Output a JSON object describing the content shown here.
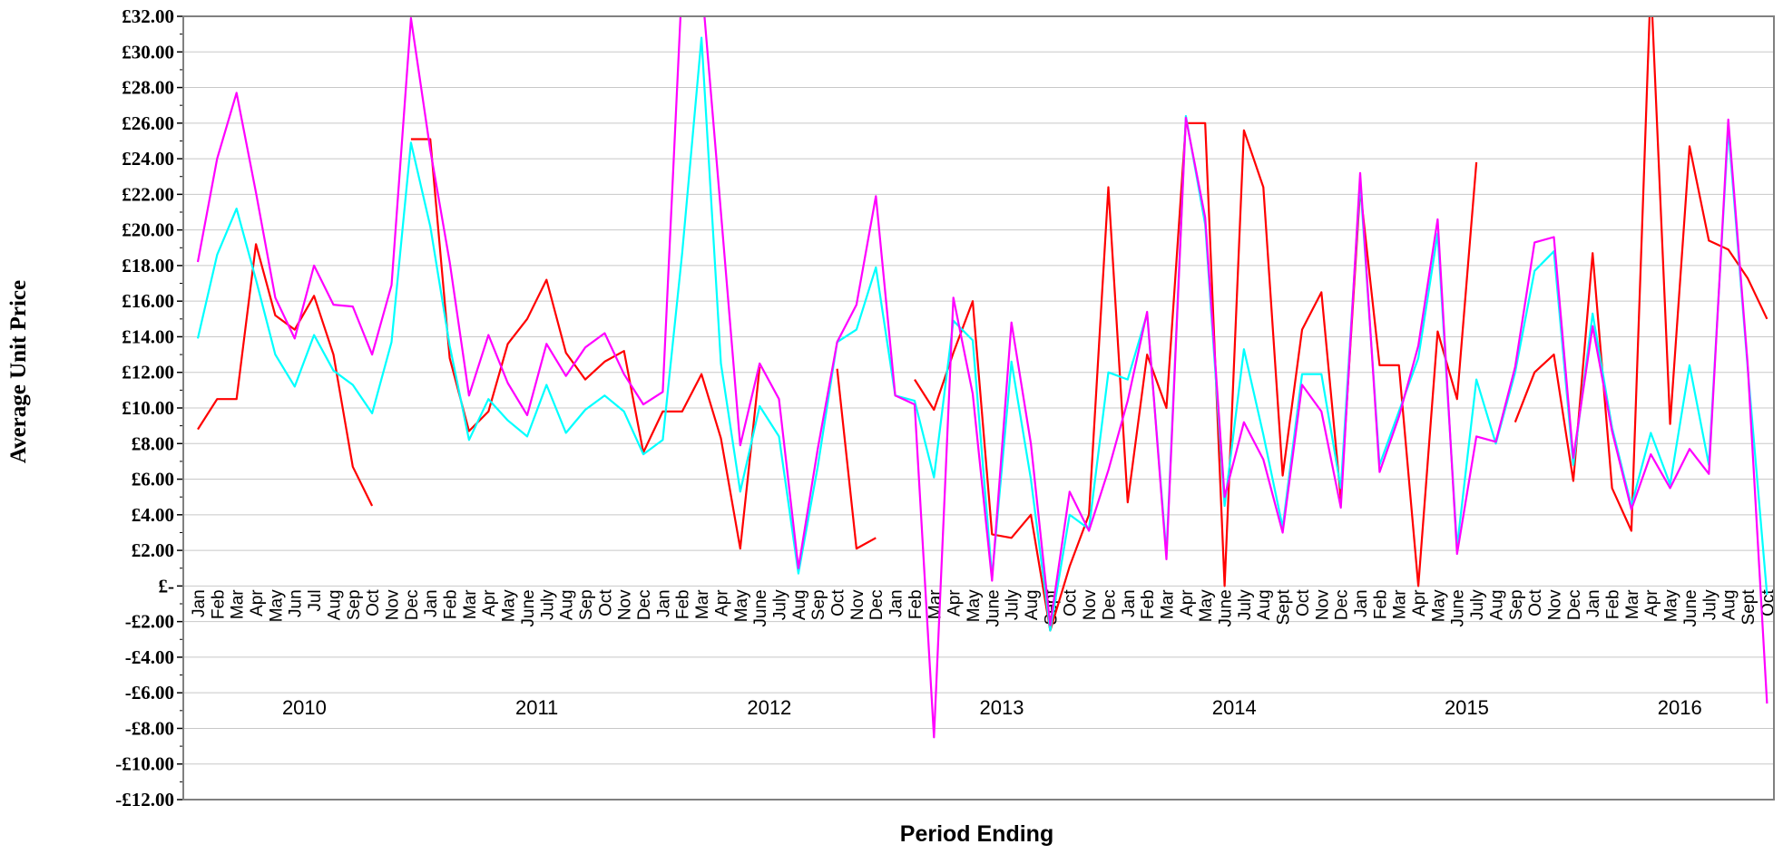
{
  "chart_data": {
    "type": "line",
    "xlabel": "Period Ending",
    "ylabel": "Average Unit Price",
    "ylim": [
      -12,
      32
    ],
    "ytick_step": 2,
    "ytick_labels": [
      "-£12.00",
      "-£10.00",
      "-£8.00",
      "-£6.00",
      "-£4.00",
      "-£2.00",
      "£-",
      "£2.00",
      "£4.00",
      "£6.00",
      "£8.00",
      "£10.00",
      "£12.00",
      "£14.00",
      "£16.00",
      "£18.00",
      "£20.00",
      "£22.00",
      "£24.00",
      "£26.00",
      "£28.00",
      "£30.00",
      "£32.00"
    ],
    "grid": true,
    "legend": "none",
    "categories": [
      "Jan",
      "Feb",
      "Mar",
      "Apr",
      "May",
      "Jun",
      "Jul",
      "Aug",
      "Sep",
      "Oct",
      "Nov",
      "Dec",
      "Jan",
      "Feb",
      "Mar",
      "Apr",
      "May",
      "June",
      "July",
      "Aug",
      "Sep",
      "Oct",
      "Nov",
      "Dec",
      "Jan",
      "Feb",
      "Mar",
      "Apr",
      "May",
      "June",
      "July",
      "Aug",
      "Sep",
      "Oct",
      "Nov",
      "Dec",
      "Jan",
      "Feb",
      "Mar",
      "Apr",
      "May",
      "June",
      "July",
      "Aug",
      "Sept",
      "Oct",
      "Nov",
      "Dec",
      "Jan",
      "Feb",
      "Mar",
      "Apr",
      "May",
      "June",
      "July",
      "Aug",
      "Sept",
      "Oct",
      "Nov",
      "Dec",
      "Jan",
      "Feb",
      "Mar",
      "Apr",
      "May",
      "June",
      "July",
      "Aug",
      "Sep",
      "Oct",
      "Nov",
      "Dec",
      "Jan",
      "Feb",
      "Mar",
      "Apr",
      "May",
      "June",
      "July",
      "Aug",
      "Sept",
      "Oct"
    ],
    "year_groups": [
      {
        "label": "2010",
        "start": 0,
        "count": 12
      },
      {
        "label": "2011",
        "start": 12,
        "count": 12
      },
      {
        "label": "2012",
        "start": 24,
        "count": 12
      },
      {
        "label": "2013",
        "start": 36,
        "count": 12
      },
      {
        "label": "2014",
        "start": 48,
        "count": 12
      },
      {
        "label": "2015",
        "start": 60,
        "count": 12
      },
      {
        "label": "2016",
        "start": 72,
        "count": 10
      }
    ],
    "series": [
      {
        "color": "#ff0000",
        "values": [
          8.8,
          10.5,
          10.5,
          19.2,
          15.2,
          14.4,
          16.3,
          13.0,
          6.7,
          4.5,
          null,
          25.1,
          25.1,
          12.8,
          8.7,
          9.8,
          13.6,
          15.0,
          17.2,
          13.1,
          11.6,
          12.6,
          13.2,
          7.5,
          9.8,
          9.8,
          11.9,
          8.3,
          2.1,
          12.3,
          null,
          null,
          null,
          12.2,
          2.1,
          2.7,
          null,
          11.6,
          9.9,
          13.1,
          16.0,
          2.9,
          2.7,
          4.0,
          -2.5,
          1.1,
          4.0,
          22.4,
          4.7,
          13.0,
          10.0,
          26.0,
          26.0,
          0.0,
          25.6,
          22.4,
          6.2,
          14.4,
          16.5,
          4.9,
          22.3,
          12.4,
          12.4,
          0.0,
          14.3,
          10.5,
          23.8,
          null,
          9.2,
          12.0,
          13.0,
          5.9,
          18.7,
          5.5,
          3.1,
          34.0,
          9.1,
          24.7,
          19.4,
          18.9,
          17.3,
          15.0
        ]
      },
      {
        "color": "#00ffff",
        "values": [
          13.9,
          18.6,
          21.2,
          17.2,
          13.0,
          11.2,
          14.1,
          12.1,
          11.3,
          9.7,
          13.7,
          24.9,
          20.2,
          13.5,
          8.2,
          10.5,
          9.3,
          8.4,
          11.3,
          8.6,
          9.9,
          10.7,
          9.8,
          7.4,
          8.2,
          18.7,
          30.8,
          12.5,
          5.3,
          10.1,
          8.4,
          0.7,
          6.7,
          13.7,
          14.4,
          17.9,
          10.7,
          10.4,
          6.1,
          14.9,
          13.8,
          0.5,
          12.6,
          6.0,
          -2.5,
          4.0,
          3.2,
          12.0,
          11.6,
          15.3,
          1.8,
          26.4,
          20.3,
          4.5,
          13.3,
          8.5,
          3.3,
          11.9,
          11.9,
          5.5,
          22.7,
          6.8,
          9.8,
          12.8,
          19.8,
          2.2,
          11.6,
          8.0,
          12.0,
          17.7,
          18.8,
          6.8,
          15.3,
          8.9,
          4.5,
          8.6,
          5.7,
          12.4,
          6.8,
          25.7,
          12.3,
          -0.5
        ]
      },
      {
        "color": "#ff00ff",
        "values": [
          18.2,
          24.0,
          27.7,
          22.1,
          16.2,
          13.9,
          18.0,
          15.8,
          15.7,
          13.0,
          16.9,
          31.9,
          24.5,
          18.2,
          10.7,
          14.1,
          11.4,
          9.6,
          13.6,
          11.8,
          13.4,
          14.2,
          11.9,
          10.2,
          10.9,
          34.0,
          34.0,
          21.0,
          7.9,
          12.5,
          10.5,
          1.0,
          7.7,
          13.7,
          15.8,
          21.9,
          10.7,
          10.2,
          -8.5,
          16.2,
          10.8,
          0.3,
          14.8,
          8.0,
          -2.2,
          5.3,
          3.1,
          6.5,
          10.4,
          15.4,
          1.5,
          26.3,
          20.7,
          5.0,
          9.2,
          7.1,
          3.0,
          11.3,
          9.8,
          4.4,
          23.2,
          6.4,
          9.5,
          13.5,
          20.6,
          1.8,
          8.4,
          8.1,
          12.3,
          19.3,
          19.6,
          7.2,
          14.6,
          8.7,
          4.3,
          7.4,
          5.5,
          7.7,
          6.3,
          26.2,
          12.5,
          -6.6
        ]
      }
    ]
  }
}
